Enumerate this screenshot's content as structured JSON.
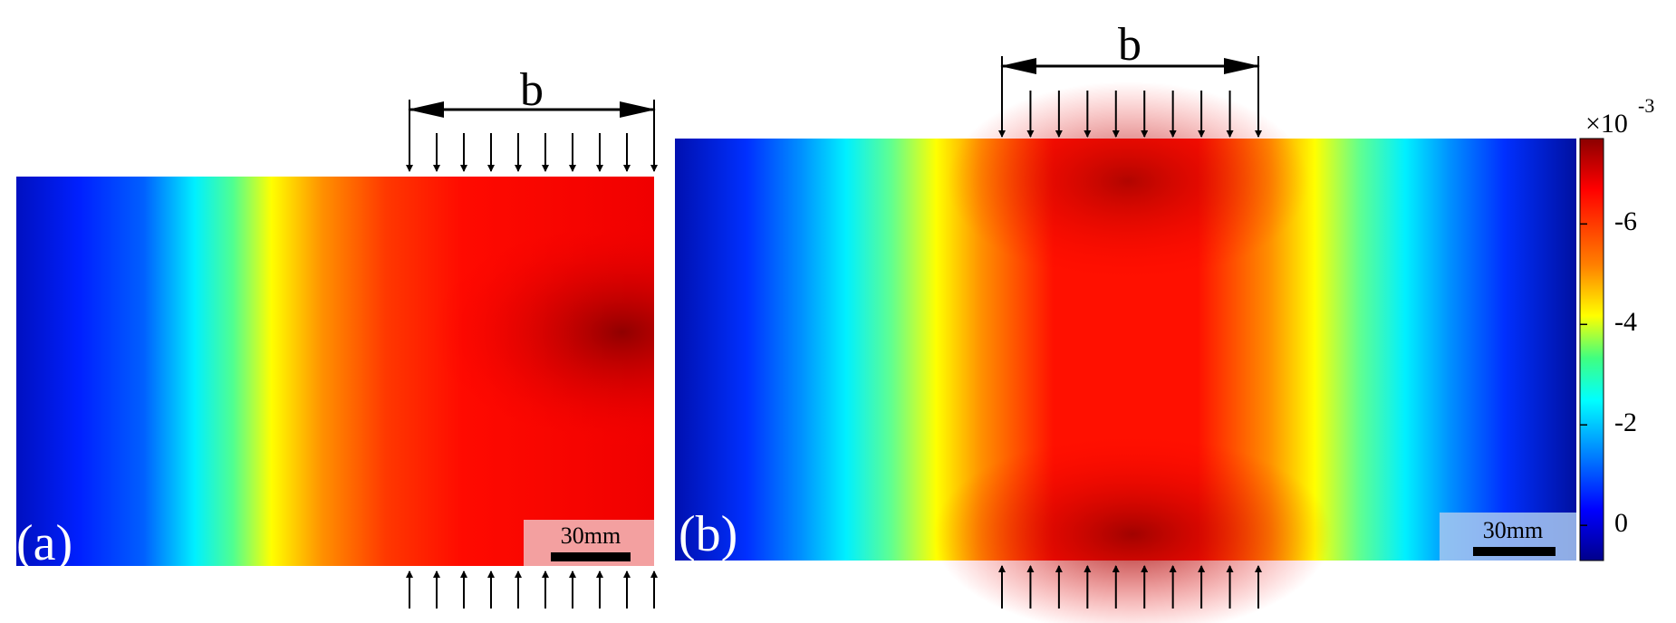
{
  "panels": [
    {
      "label": "(a)",
      "width_label": "b",
      "scale_bar": "30mm"
    },
    {
      "label": "(b)",
      "width_label": "b",
      "scale_bar": "30mm"
    }
  ],
  "colorbar": {
    "multiplier": "×10",
    "exponent": "-3",
    "ticks": [
      0,
      -2,
      -4,
      -6
    ],
    "lim": [
      0.7,
      -7.7
    ]
  }
}
